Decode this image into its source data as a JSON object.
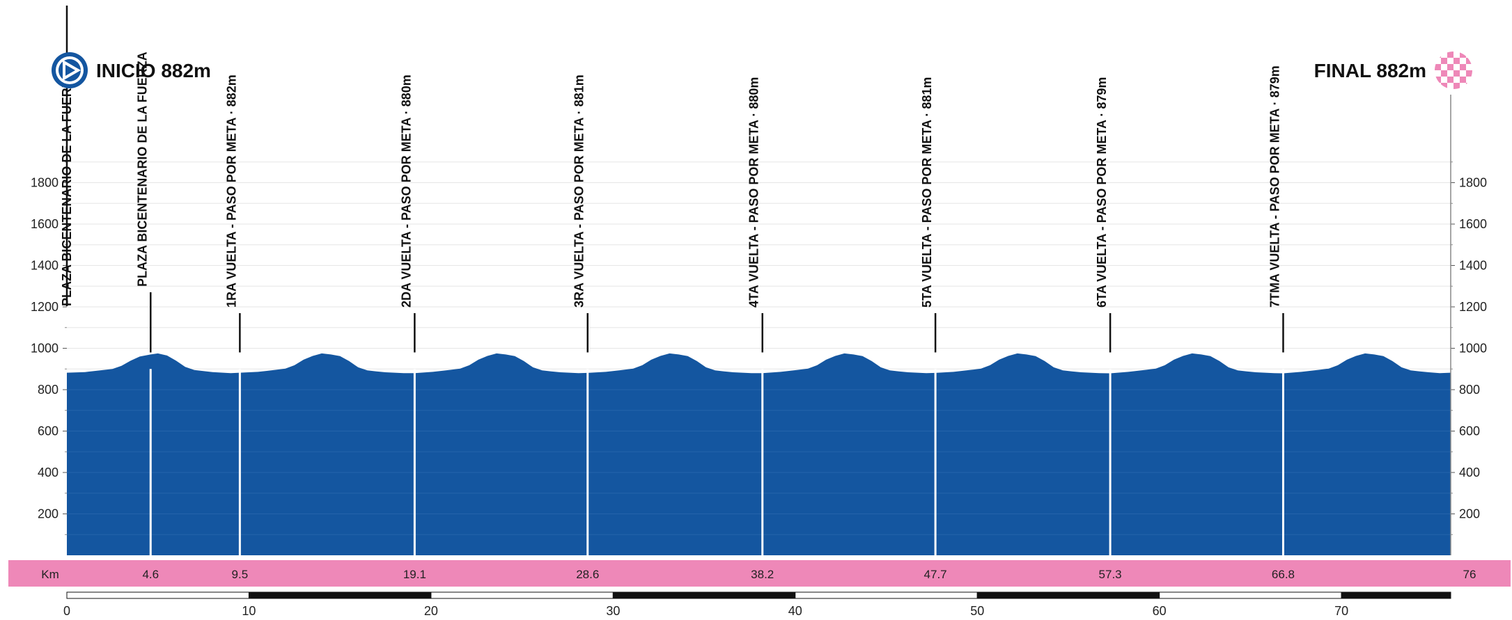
{
  "chart_data": {
    "type": "area",
    "title": "",
    "xlabel": "Km",
    "ylabel": "",
    "xlim": [
      0,
      76
    ],
    "ylim": [
      0,
      2000
    ],
    "yticks": [
      200,
      400,
      600,
      800,
      1000,
      1200,
      1400,
      1600,
      1800
    ],
    "scale_ticks": [
      0,
      10,
      20,
      30,
      40,
      50,
      60,
      70
    ],
    "grid": true,
    "total_km": "76",
    "fill_color": "#1456a0",
    "accent_color": "#ee88b8",
    "start": {
      "label": "INICIO 882m",
      "km": 0
    },
    "finish": {
      "label": "FINAL 882m",
      "km": 76
    },
    "start_marker_label": "PLAZA BICENTENARIO DE LA FUERZA",
    "checkpoints": [
      {
        "km": 4.6,
        "km_label": "4.6",
        "label": "PLAZA BICENTENARIO DE LA FUERZA"
      },
      {
        "km": 9.5,
        "km_label": "9.5",
        "label": "1RA VUELTA - PASO POR META · 882m"
      },
      {
        "km": 19.1,
        "km_label": "19.1",
        "label": "2DA VUELTA - PASO POR META · 880m"
      },
      {
        "km": 28.6,
        "km_label": "28.6",
        "label": "3RA VUELTA - PASO POR META · 881m"
      },
      {
        "km": 38.2,
        "km_label": "38.2",
        "label": "4TA VUELTA - PASO POR META · 880m"
      },
      {
        "km": 47.7,
        "km_label": "47.7",
        "label": "5TA VUELTA - PASO POR META · 881m"
      },
      {
        "km": 57.3,
        "km_label": "57.3",
        "label": "6TA VUELTA - PASO POR META · 879m"
      },
      {
        "km": 66.8,
        "km_label": "66.8",
        "label": "7TMA VUELTA - PASO POR META · 879m"
      }
    ],
    "series": [
      {
        "x": [
          0,
          1,
          2,
          2.5,
          3,
          3.5,
          4,
          4.6,
          5,
          5.5,
          6,
          6.5,
          7,
          7.5,
          8,
          9,
          9.5,
          10.5,
          11.5,
          12,
          12.5,
          13,
          13.5,
          14,
          14.5,
          15,
          15.5,
          16,
          16.5,
          17,
          17.5,
          18.5,
          19.1,
          20.1,
          21.1,
          21.6,
          22.1,
          22.6,
          23.1,
          23.6,
          24.1,
          24.6,
          25.1,
          25.6,
          26.1,
          26.6,
          27.1,
          28.1,
          28.6,
          29.6,
          30.6,
          31.1,
          31.6,
          32.1,
          32.6,
          33.1,
          33.6,
          34.1,
          34.6,
          35.1,
          35.6,
          36.1,
          36.6,
          37.6,
          38.2,
          39.2,
          40.2,
          40.7,
          41.2,
          41.7,
          42.2,
          42.7,
          43.2,
          43.7,
          44.2,
          44.7,
          45.2,
          45.7,
          46.2,
          47.2,
          47.7,
          48.7,
          49.7,
          50.2,
          50.7,
          51.2,
          51.7,
          52.2,
          52.7,
          53.2,
          53.7,
          54.2,
          54.7,
          55.2,
          55.7,
          56.7,
          57.3,
          58.3,
          59.3,
          59.8,
          60.3,
          60.8,
          61.3,
          61.8,
          62.3,
          62.8,
          63.3,
          63.8,
          64.3,
          64.8,
          65.3,
          66.3,
          66.8,
          67.8,
          68.8,
          69.3,
          69.8,
          70.3,
          70.8,
          71.3,
          71.8,
          72.3,
          72.8,
          73.3,
          73.8,
          74.3,
          74.8,
          75.4,
          76
        ],
        "y": [
          882,
          885,
          895,
          900,
          915,
          940,
          960,
          970,
          975,
          965,
          940,
          910,
          895,
          890,
          885,
          880,
          882,
          886,
          896,
          902,
          918,
          945,
          963,
          975,
          970,
          962,
          938,
          908,
          893,
          888,
          884,
          880,
          880,
          886,
          896,
          902,
          918,
          945,
          963,
          975,
          970,
          962,
          938,
          908,
          893,
          888,
          884,
          880,
          881,
          886,
          896,
          902,
          918,
          945,
          963,
          975,
          970,
          962,
          938,
          908,
          893,
          888,
          884,
          880,
          880,
          886,
          896,
          902,
          918,
          945,
          963,
          975,
          970,
          962,
          938,
          908,
          893,
          888,
          884,
          880,
          881,
          886,
          896,
          902,
          918,
          945,
          963,
          975,
          970,
          962,
          938,
          908,
          893,
          888,
          884,
          880,
          879,
          886,
          896,
          902,
          918,
          945,
          963,
          975,
          970,
          962,
          938,
          908,
          893,
          888,
          884,
          880,
          879,
          886,
          896,
          902,
          918,
          945,
          963,
          975,
          970,
          962,
          938,
          908,
          893,
          888,
          884,
          880,
          882
        ]
      }
    ]
  }
}
